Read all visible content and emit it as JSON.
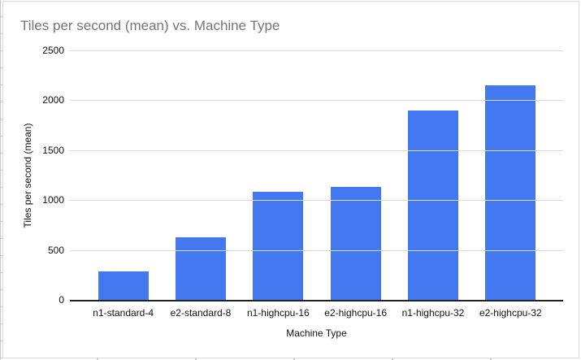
{
  "chart_data": {
    "type": "bar",
    "title": "Tiles per second (mean) vs. Machine Type",
    "xlabel": "Machine Type",
    "ylabel": "Tiles per second (mean)",
    "categories": [
      "n1-standard-4",
      "e2-standard-8",
      "n1-highcpu-16",
      "e2-highcpu-16",
      "n1-highcpu-32",
      "e2-highcpu-32"
    ],
    "values": [
      285,
      625,
      1080,
      1135,
      1900,
      2150
    ],
    "ylim": [
      0,
      2500
    ],
    "ytick_interval": 500,
    "yticks": [
      "2500",
      "2000",
      "1500",
      "1000",
      "500",
      "0"
    ],
    "grid": true,
    "legend": false,
    "bar_color": "#4478f0",
    "title_color": "#757575",
    "gridline_color": "#d9d9d9",
    "axis_color": "#212121",
    "label_color": "#111111"
  }
}
